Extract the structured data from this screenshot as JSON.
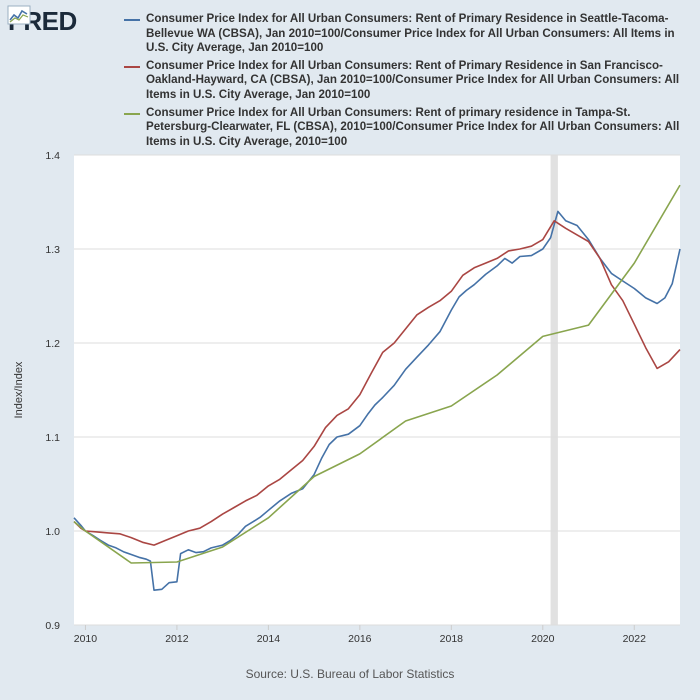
{
  "logo": {
    "text": "FRED",
    "icon": "chart-line-icon"
  },
  "source": "Source: U.S. Bureau of Labor Statistics",
  "chart_data": {
    "type": "line",
    "ylabel": "Index/Index",
    "ylim": [
      0.9,
      1.4
    ],
    "xlim": [
      2009.75,
      2023.0
    ],
    "y_ticks": [
      0.9,
      1.0,
      1.1,
      1.2,
      1.3,
      1.4
    ],
    "y_tick_labels": [
      "0.9",
      "1.0",
      "1.1",
      "1.2",
      "1.3",
      "1.4"
    ],
    "x_ticks": [
      2010,
      2012,
      2014,
      2016,
      2018,
      2020,
      2022
    ],
    "x_tick_labels": [
      "2010",
      "2012",
      "2014",
      "2016",
      "2018",
      "2020",
      "2022"
    ],
    "grid": true,
    "legend_position": "top",
    "recession_shading": [
      2020.17,
      2020.33
    ],
    "series": [
      {
        "name": "Consumer Price Index for All Urban Consumers: Rent of Primary Residence in Seattle-Tacoma-Bellevue WA (CBSA), Jan 2010=100/Consumer Price Index for All Urban Consumers: All Items in U.S. City Average, Jan 2010=100",
        "color": "#4572a7",
        "points": [
          [
            2009.75,
            1.014
          ],
          [
            2009.9,
            1.006
          ],
          [
            2010.0,
            1.0
          ],
          [
            2010.17,
            0.995
          ],
          [
            2010.33,
            0.99
          ],
          [
            2010.5,
            0.985
          ],
          [
            2010.67,
            0.982
          ],
          [
            2010.83,
            0.978
          ],
          [
            2011.0,
            0.975
          ],
          [
            2011.17,
            0.972
          ],
          [
            2011.33,
            0.97
          ],
          [
            2011.42,
            0.968
          ],
          [
            2011.5,
            0.937
          ],
          [
            2011.67,
            0.938
          ],
          [
            2011.83,
            0.945
          ],
          [
            2012.0,
            0.946
          ],
          [
            2012.08,
            0.976
          ],
          [
            2012.25,
            0.98
          ],
          [
            2012.42,
            0.977
          ],
          [
            2012.58,
            0.978
          ],
          [
            2012.75,
            0.982
          ],
          [
            2013.0,
            0.985
          ],
          [
            2013.17,
            0.99
          ],
          [
            2013.33,
            0.996
          ],
          [
            2013.5,
            1.005
          ],
          [
            2013.67,
            1.01
          ],
          [
            2013.83,
            1.015
          ],
          [
            2014.0,
            1.022
          ],
          [
            2014.25,
            1.032
          ],
          [
            2014.5,
            1.04
          ],
          [
            2014.75,
            1.045
          ],
          [
            2015.0,
            1.06
          ],
          [
            2015.17,
            1.078
          ],
          [
            2015.33,
            1.092
          ],
          [
            2015.5,
            1.1
          ],
          [
            2015.75,
            1.103
          ],
          [
            2016.0,
            1.112
          ],
          [
            2016.17,
            1.124
          ],
          [
            2016.33,
            1.134
          ],
          [
            2016.5,
            1.142
          ],
          [
            2016.75,
            1.155
          ],
          [
            2017.0,
            1.172
          ],
          [
            2017.25,
            1.185
          ],
          [
            2017.5,
            1.198
          ],
          [
            2017.75,
            1.212
          ],
          [
            2018.0,
            1.235
          ],
          [
            2018.17,
            1.249
          ],
          [
            2018.33,
            1.256
          ],
          [
            2018.5,
            1.262
          ],
          [
            2018.75,
            1.273
          ],
          [
            2019.0,
            1.282
          ],
          [
            2019.17,
            1.29
          ],
          [
            2019.33,
            1.285
          ],
          [
            2019.5,
            1.292
          ],
          [
            2019.75,
            1.293
          ],
          [
            2020.0,
            1.3
          ],
          [
            2020.17,
            1.312
          ],
          [
            2020.33,
            1.34
          ],
          [
            2020.5,
            1.33
          ],
          [
            2020.75,
            1.325
          ],
          [
            2021.0,
            1.31
          ],
          [
            2021.25,
            1.29
          ],
          [
            2021.5,
            1.274
          ],
          [
            2021.75,
            1.266
          ],
          [
            2022.0,
            1.258
          ],
          [
            2022.25,
            1.248
          ],
          [
            2022.5,
            1.242
          ],
          [
            2022.67,
            1.248
          ],
          [
            2022.83,
            1.263
          ],
          [
            2023.0,
            1.3
          ]
        ]
      },
      {
        "name": "Consumer Price Index for All Urban Consumers: Rent of Primary Residence in San Francisco-Oakland-Hayward, CA (CBSA), Jan 2010=100/Consumer Price Index for All Urban Consumers: All Items in U.S. City Average, Jan 2010=100",
        "color": "#aa4643",
        "points": [
          [
            2009.75,
            1.01
          ],
          [
            2009.9,
            1.003
          ],
          [
            2010.0,
            1.0
          ],
          [
            2010.25,
            0.999
          ],
          [
            2010.5,
            0.998
          ],
          [
            2010.75,
            0.997
          ],
          [
            2011.0,
            0.993
          ],
          [
            2011.25,
            0.988
          ],
          [
            2011.5,
            0.985
          ],
          [
            2011.75,
            0.99
          ],
          [
            2012.0,
            0.995
          ],
          [
            2012.25,
            1.0
          ],
          [
            2012.5,
            1.003
          ],
          [
            2012.75,
            1.01
          ],
          [
            2013.0,
            1.018
          ],
          [
            2013.25,
            1.025
          ],
          [
            2013.5,
            1.032
          ],
          [
            2013.75,
            1.038
          ],
          [
            2014.0,
            1.048
          ],
          [
            2014.25,
            1.055
          ],
          [
            2014.5,
            1.065
          ],
          [
            2014.75,
            1.075
          ],
          [
            2015.0,
            1.09
          ],
          [
            2015.25,
            1.11
          ],
          [
            2015.5,
            1.123
          ],
          [
            2015.75,
            1.13
          ],
          [
            2016.0,
            1.145
          ],
          [
            2016.25,
            1.168
          ],
          [
            2016.5,
            1.19
          ],
          [
            2016.75,
            1.2
          ],
          [
            2017.0,
            1.215
          ],
          [
            2017.25,
            1.23
          ],
          [
            2017.5,
            1.238
          ],
          [
            2017.75,
            1.245
          ],
          [
            2018.0,
            1.255
          ],
          [
            2018.25,
            1.272
          ],
          [
            2018.5,
            1.28
          ],
          [
            2018.75,
            1.285
          ],
          [
            2019.0,
            1.29
          ],
          [
            2019.25,
            1.298
          ],
          [
            2019.5,
            1.3
          ],
          [
            2019.75,
            1.303
          ],
          [
            2020.0,
            1.31
          ],
          [
            2020.25,
            1.33
          ],
          [
            2020.5,
            1.322
          ],
          [
            2020.75,
            1.315
          ],
          [
            2021.0,
            1.308
          ],
          [
            2021.25,
            1.29
          ],
          [
            2021.5,
            1.262
          ],
          [
            2021.75,
            1.245
          ],
          [
            2022.0,
            1.22
          ],
          [
            2022.25,
            1.195
          ],
          [
            2022.5,
            1.173
          ],
          [
            2022.75,
            1.18
          ],
          [
            2023.0,
            1.193
          ]
        ]
      },
      {
        "name": "Consumer Price Index for All Urban Consumers: Rent of primary residence in Tampa-St. Petersburg-Clearwater, FL (CBSA), 2010=100/Consumer Price Index for All Urban Consumers: All Items in U.S. City Average, 2010=100",
        "color": "#89a54e",
        "points": [
          [
            2009.75,
            1.01
          ],
          [
            2010.0,
            1.0
          ],
          [
            2011.0,
            0.966
          ],
          [
            2012.0,
            0.967
          ],
          [
            2013.0,
            0.983
          ],
          [
            2014.0,
            1.014
          ],
          [
            2015.0,
            1.058
          ],
          [
            2016.0,
            1.082
          ],
          [
            2017.0,
            1.117
          ],
          [
            2018.0,
            1.133
          ],
          [
            2019.0,
            1.166
          ],
          [
            2020.0,
            1.207
          ],
          [
            2021.0,
            1.219
          ],
          [
            2022.0,
            1.285
          ],
          [
            2023.0,
            1.368
          ]
        ]
      }
    ]
  }
}
